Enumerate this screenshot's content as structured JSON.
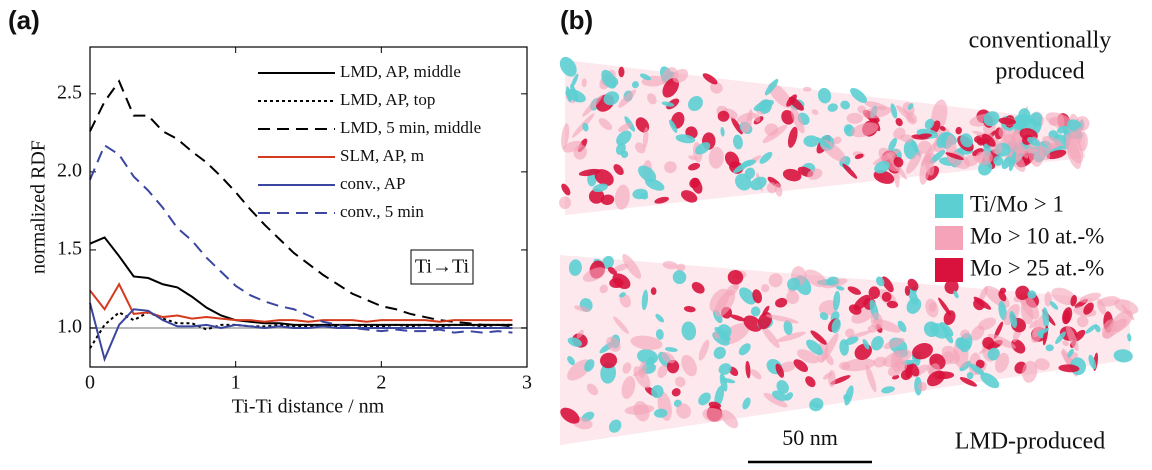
{
  "chart_data": {
    "type": "line",
    "panel_label": "(a)",
    "xlabel": "Ti-Ti distance / nm",
    "ylabel": "normalized RDF",
    "annotation": "Ti→Ti",
    "xlim": [
      0,
      3
    ],
    "ylim": [
      0.75,
      2.8
    ],
    "xticks": [
      0,
      1,
      2,
      3
    ],
    "yticks": [
      {
        "value": 1,
        "label": "1.0"
      },
      1.5,
      {
        "value": 2,
        "label": "2.0"
      },
      2.5
    ],
    "reference_line": {
      "value": 1,
      "color": "#b8b8b8"
    },
    "legend": "upper right",
    "x": [
      0,
      0.1,
      0.2,
      0.3,
      0.4,
      0.5,
      0.6,
      0.7,
      0.8,
      0.9,
      1.0,
      1.1,
      1.2,
      1.3,
      1.4,
      1.5,
      1.6,
      1.7,
      1.8,
      1.9,
      2.0,
      2.1,
      2.2,
      2.3,
      2.4,
      2.5,
      2.6,
      2.7,
      2.8,
      2.9
    ],
    "series": [
      {
        "name": "LMD, AP, middle",
        "color": "#000000",
        "dash": "solid",
        "values": [
          1.54,
          1.58,
          1.46,
          1.33,
          1.32,
          1.28,
          1.26,
          1.2,
          1.13,
          1.08,
          1.05,
          1.04,
          1.03,
          1.03,
          1.02,
          1.02,
          1.02,
          1.02,
          1.02,
          1.02,
          1.02,
          1.02,
          1.02,
          1.02,
          1.02,
          1.02,
          1.02,
          1.02,
          1.02,
          1.02
        ]
      },
      {
        "name": "LMD, AP, top",
        "color": "#000000",
        "dash": "dotted",
        "values": [
          0.87,
          1.02,
          1.1,
          1.05,
          1.1,
          1.06,
          1.03,
          1.03,
          0.99,
          1.02,
          1.02,
          1.01,
          1.01,
          1.02,
          1.01,
          1.01,
          1.01,
          1.01,
          1.02,
          1.01,
          1.01,
          1.02,
          1.01,
          1.02,
          1.01,
          1.02,
          1.02,
          1.01,
          1.02,
          1.02
        ]
      },
      {
        "name": "LMD, 5 min, middle",
        "color": "#000000",
        "dash": "dashed",
        "values": [
          2.26,
          2.45,
          2.58,
          2.36,
          2.36,
          2.26,
          2.21,
          2.13,
          2.06,
          1.97,
          1.87,
          1.76,
          1.66,
          1.57,
          1.48,
          1.41,
          1.34,
          1.28,
          1.22,
          1.18,
          1.14,
          1.12,
          1.09,
          1.07,
          1.05,
          1.04,
          1.03,
          1.02,
          1.02,
          1.01
        ]
      },
      {
        "name": "SLM, AP, m",
        "color": "#d63a1e",
        "dash": "solid",
        "values": [
          1.24,
          1.12,
          1.28,
          1.09,
          1.1,
          1.07,
          1.08,
          1.06,
          1.07,
          1.06,
          1.05,
          1.05,
          1.04,
          1.05,
          1.05,
          1.04,
          1.05,
          1.05,
          1.05,
          1.04,
          1.05,
          1.05,
          1.05,
          1.05,
          1.04,
          1.05,
          1.05,
          1.05,
          1.05,
          1.05
        ]
      },
      {
        "name": "conv., AP",
        "color": "#3b46a0",
        "dash": "solid",
        "values": [
          1.16,
          0.8,
          1.02,
          1.12,
          1.11,
          1.05,
          1.01,
          1.01,
          1.02,
          1.0,
          1.02,
          1.01,
          1.0,
          1.01,
          1.0,
          1.0,
          1.01,
          1.0,
          1.0,
          1.0,
          1.0,
          1.0,
          1.0,
          1.0,
          1.0,
          1.0,
          1.0,
          1.0,
          1.0,
          1.0
        ]
      },
      {
        "name": "conv., 5 min",
        "color": "#3b46a0",
        "dash": "dashed",
        "values": [
          1.95,
          2.17,
          2.11,
          1.97,
          1.88,
          1.77,
          1.64,
          1.56,
          1.45,
          1.36,
          1.27,
          1.21,
          1.17,
          1.14,
          1.12,
          1.08,
          1.04,
          1.02,
          1.0,
          0.99,
          0.98,
          0.99,
          0.98,
          0.98,
          0.99,
          0.97,
          0.98,
          0.97,
          0.98,
          0.97
        ]
      }
    ]
  },
  "panel_b": {
    "panel_label": "(b)",
    "top_label": [
      "conventionally",
      "produced"
    ],
    "bottom_label": "LMD-produced",
    "scale_bar": "50 nm",
    "legend": [
      {
        "label": "Ti/Mo > 1",
        "color": "#5ccfd3"
      },
      {
        "label": "Mo > 10 at.-%",
        "color": "#f4a3b8"
      },
      {
        "label": "Mo > 25 at.-%",
        "color": "#d8123c"
      }
    ]
  }
}
